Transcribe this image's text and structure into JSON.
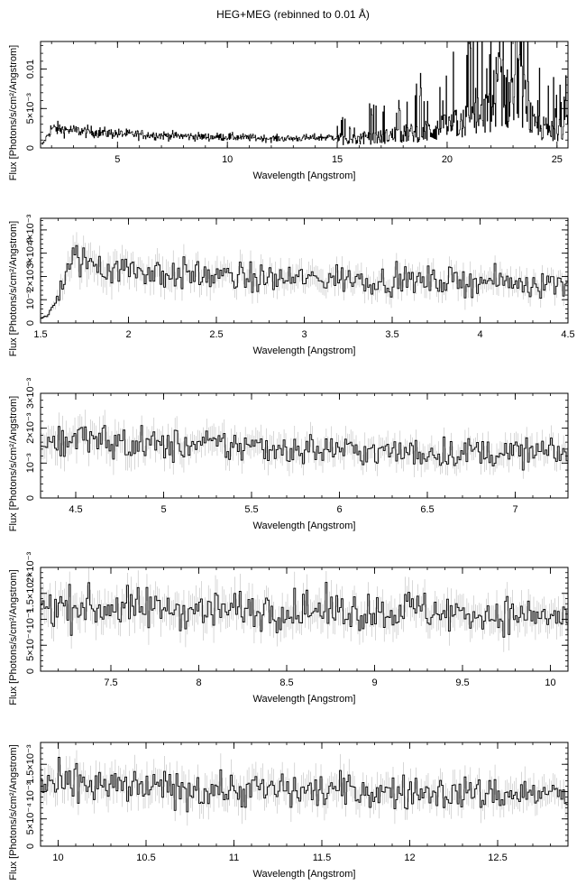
{
  "figure": {
    "title": "HEG+MEG (rebinned to 0.01 Å)"
  },
  "chart_data": [
    {
      "type": "line",
      "name": "panel-1",
      "xlabel": "Wavelength [Angstrom]",
      "ylabel": "Flux [Photons/s/cm²/Angstrom]",
      "xlim": [
        1.5,
        25.5
      ],
      "ylim": [
        0,
        0.0135
      ],
      "xticks": [
        5,
        10,
        15,
        20,
        25
      ],
      "xticklabels": [
        "5",
        "10",
        "15",
        "20",
        "25"
      ],
      "yticks": [
        0,
        0.005,
        0.01
      ],
      "yticklabels": [
        "0",
        "5×10⁻³",
        "0.01"
      ],
      "series": [
        {
          "x": [
            1.6,
            2.0,
            3.0,
            4.0,
            5.0,
            6.0,
            7.0,
            8.0,
            9.0,
            10.0,
            11.0,
            12.0,
            13.0,
            14.0,
            15.0,
            16.0,
            17.0,
            18.0,
            19.0,
            20.0,
            21.0,
            22.0,
            22.3,
            22.8,
            23.0,
            24.0,
            25.0
          ],
          "y": [
            0.0005,
            0.0025,
            0.0022,
            0.002,
            0.0018,
            0.0017,
            0.0016,
            0.0015,
            0.0014,
            0.0014,
            0.0013,
            0.0012,
            0.0012,
            0.0013,
            0.0014,
            0.0016,
            0.002,
            0.0025,
            0.003,
            0.0038,
            0.005,
            0.0065,
            0.012,
            0.0085,
            0.0135,
            0.0035,
            0.0035
          ]
        }
      ]
    },
    {
      "type": "line",
      "name": "panel-2",
      "xlabel": "Wavelength [Angstrom]",
      "ylabel": "Flux [Photons/s/cm²/Angstrom]",
      "xlim": [
        1.5,
        4.5
      ],
      "ylim": [
        0,
        0.0045
      ],
      "xticks": [
        1.5,
        2,
        2.5,
        3,
        3.5,
        4,
        4.5
      ],
      "xticklabels": [
        "1.5",
        "2",
        "2.5",
        "3",
        "3.5",
        "4",
        "4.5"
      ],
      "yticks": [
        0,
        0.001,
        0.002,
        0.003,
        0.004
      ],
      "yticklabels": [
        "0",
        "10⁻³",
        "2×10⁻³",
        "3×10⁻³",
        "4×10⁻³"
      ],
      "series": [
        {
          "x": [
            1.52,
            1.55,
            1.6,
            1.65,
            1.7,
            1.75,
            1.8,
            1.9,
            2.0,
            2.25,
            2.5,
            2.75,
            3.0,
            3.25,
            3.5,
            3.75,
            4.0,
            4.25,
            4.5
          ],
          "y": [
            0.0002,
            0.0004,
            0.0012,
            0.0022,
            0.0026,
            0.0028,
            0.0025,
            0.0024,
            0.0023,
            0.0021,
            0.002,
            0.0019,
            0.0019,
            0.0019,
            0.0018,
            0.0018,
            0.0018,
            0.0017,
            0.0017
          ]
        }
      ]
    },
    {
      "type": "line",
      "name": "panel-3",
      "xlabel": "Wavelength [Angstrom]",
      "ylabel": "Flux [Photons/s/cm²/Angstrom]",
      "xlim": [
        4.3,
        7.3
      ],
      "ylim": [
        0,
        0.003
      ],
      "xticks": [
        4.5,
        5,
        5.5,
        6,
        6.5,
        7
      ],
      "xticklabels": [
        "4.5",
        "5",
        "5.5",
        "6",
        "6.5",
        "7"
      ],
      "yticks": [
        0,
        0.001,
        0.002,
        0.003
      ],
      "yticklabels": [
        "0",
        "10⁻³",
        "2×10⁻³",
        "3×10⁻³"
      ],
      "series": [
        {
          "x": [
            4.3,
            4.5,
            4.7,
            5.0,
            5.25,
            5.5,
            5.75,
            6.0,
            6.25,
            6.5,
            6.75,
            7.0,
            7.3
          ],
          "y": [
            0.0016,
            0.0017,
            0.0016,
            0.0015,
            0.0015,
            0.0015,
            0.0014,
            0.0014,
            0.0013,
            0.0013,
            0.0013,
            0.0013,
            0.0013
          ]
        }
      ]
    },
    {
      "type": "line",
      "name": "panel-4",
      "xlabel": "Wavelength [Angstrom]",
      "ylabel": "Flux [Photons/s/cm²/Angstrom]",
      "xlim": [
        7.1,
        10.1
      ],
      "ylim": [
        0,
        0.002
      ],
      "xticks": [
        7.5,
        8,
        8.5,
        9,
        9.5,
        10
      ],
      "xticklabels": [
        "7.5",
        "8",
        "8.5",
        "9",
        "9.5",
        "10"
      ],
      "yticks": [
        0,
        0.0005,
        0.001,
        0.0015,
        0.002
      ],
      "yticklabels": [
        "0",
        "5×10⁻⁴",
        "10⁻³",
        "1.5×10⁻³",
        "2×10⁻³"
      ],
      "series": [
        {
          "x": [
            7.1,
            7.5,
            8.0,
            8.5,
            9.0,
            9.2,
            9.5,
            9.8,
            10.1
          ],
          "y": [
            0.00125,
            0.00122,
            0.0012,
            0.00118,
            0.00115,
            0.0012,
            0.0011,
            0.00108,
            0.00105
          ]
        }
      ]
    },
    {
      "type": "line",
      "name": "panel-5",
      "xlabel": "Wavelength [Angstrom]",
      "ylabel": "Flux [Photons/s/cm²/Angstrom]",
      "xlim": [
        9.9,
        12.9
      ],
      "ylim": [
        0,
        0.0019
      ],
      "xticks": [
        10,
        10.5,
        11,
        11.5,
        12,
        12.5
      ],
      "xticklabels": [
        "10",
        "10.5",
        "11",
        "11.5",
        "12",
        "12.5"
      ],
      "yticks": [
        0,
        0.0005,
        0.001,
        0.0015
      ],
      "yticklabels": [
        "0",
        "5×10⁻⁴",
        "10⁻³",
        "1.5×10⁻³"
      ],
      "series": [
        {
          "x": [
            9.9,
            10.25,
            10.5,
            10.75,
            11.0,
            11.25,
            11.5,
            11.75,
            12.0,
            12.25,
            12.5,
            12.75,
            12.9
          ],
          "y": [
            0.0011,
            0.00108,
            0.00106,
            0.00105,
            0.00104,
            0.00103,
            0.00102,
            0.001,
            0.00098,
            0.00097,
            0.00096,
            0.00096,
            0.00095
          ]
        }
      ]
    }
  ]
}
